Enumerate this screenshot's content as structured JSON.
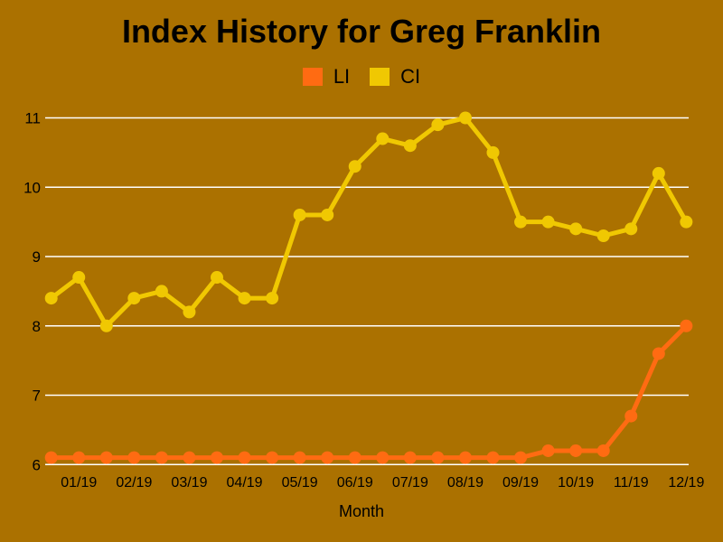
{
  "colors": {
    "background": "#AB7100",
    "grid": "#FFFFFF",
    "text": "#000000",
    "li_series": "#FF6B12",
    "ci_series": "#F0C802"
  },
  "chart_data": {
    "type": "line",
    "title": "Index History for Greg Franklin",
    "xlabel": "Month",
    "ylabel": "",
    "ylim": [
      6,
      11
    ],
    "y_ticks": [
      6,
      7,
      8,
      9,
      10,
      11
    ],
    "grid": true,
    "legend_position": "top",
    "x_tick_labels": [
      "01/19",
      "02/19",
      "03/19",
      "04/19",
      "05/19",
      "06/19",
      "07/19",
      "08/19",
      "09/19",
      "10/19",
      "11/19",
      "12/19"
    ],
    "points_per_month": 2,
    "series": [
      {
        "name": "LI",
        "color": "#FF6B12",
        "values": [
          6.1,
          6.1,
          6.1,
          6.1,
          6.1,
          6.1,
          6.1,
          6.1,
          6.1,
          6.1,
          6.1,
          6.1,
          6.1,
          6.1,
          6.1,
          6.1,
          6.1,
          6.1,
          6.2,
          6.2,
          6.2,
          6.7,
          7.6,
          8.0
        ]
      },
      {
        "name": "CI",
        "color": "#F0C802",
        "values": [
          8.4,
          8.7,
          8.0,
          8.4,
          8.5,
          8.2,
          8.7,
          8.4,
          8.4,
          9.6,
          9.6,
          10.3,
          10.7,
          10.6,
          10.9,
          11.0,
          10.5,
          9.5,
          9.5,
          9.4,
          9.3,
          9.4,
          10.2,
          9.5
        ]
      }
    ]
  }
}
